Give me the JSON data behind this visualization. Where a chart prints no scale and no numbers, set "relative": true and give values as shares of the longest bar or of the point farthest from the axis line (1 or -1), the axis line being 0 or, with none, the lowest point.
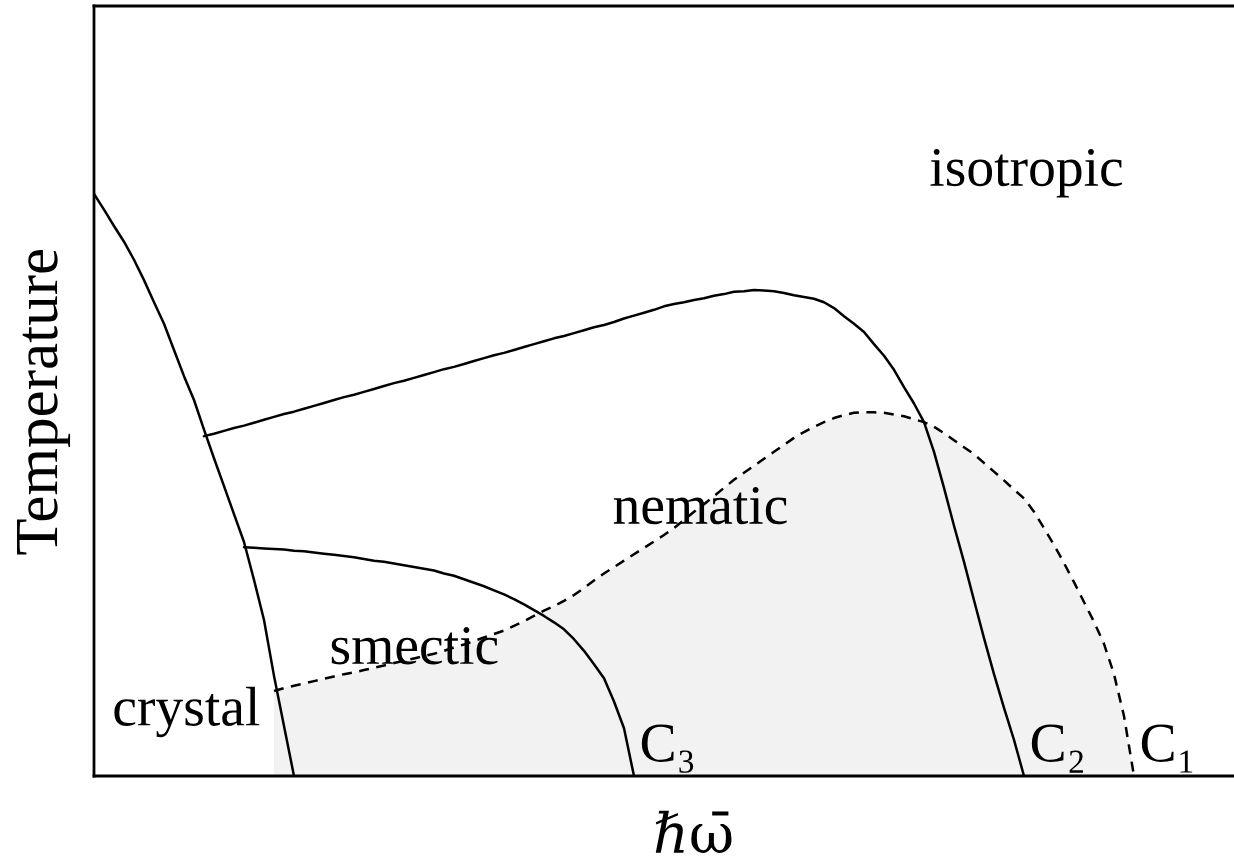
{
  "chart_data": {
    "type": "line",
    "relative": true,
    "tick_labels": false,
    "color": "#000000",
    "xlabel": "ℏω̄",
    "ylabel": "Temperature",
    "categories": [
      null,
      null,
      null,
      null,
      null,
      null,
      null,
      null,
      null,
      null,
      null,
      null,
      null,
      null,
      null,
      null,
      null,
      null,
      null,
      null,
      null,
      null,
      null,
      null,
      null,
      null,
      null,
      null,
      null,
      null,
      null,
      null,
      null,
      null,
      null,
      null,
      null,
      null,
      null,
      null,
      null,
      null,
      null,
      null,
      null,
      null,
      null,
      null,
      null,
      null,
      null,
      null,
      null,
      null,
      null,
      null,
      null,
      null,
      null,
      null,
      null,
      null,
      null,
      null,
      null,
      null,
      null,
      null,
      null,
      null,
      null,
      null,
      null,
      null,
      null,
      null,
      null,
      null,
      null,
      null,
      null,
      null,
      null,
      null,
      null,
      null,
      null,
      null,
      null,
      null,
      null,
      null,
      null,
      null,
      null,
      null,
      null,
      null,
      null,
      null,
      null,
      null,
      null,
      null,
      null,
      null,
      null,
      null,
      null,
      null,
      null,
      null,
      null,
      null,
      null
    ],
    "series": [
      {
        "type": "area",
        "name": "C₁",
        "color": "#f2f2f2",
        "line_style": "dashed",
        "values": [
          null,
          null,
          null,
          null,
          null,
          null,
          null,
          null,
          null,
          null,
          null,
          null,
          null,
          null,
          null,
          null,
          null,
          null,
          0.146,
          0.151,
          0.155,
          0.159,
          0.163,
          0.167,
          0.171,
          0.175,
          0.178,
          0.182,
          0.186,
          0.19,
          0.194,
          0.198,
          0.202,
          0.206,
          0.21,
          0.215,
          0.221,
          0.226,
          0.232,
          0.238,
          0.244,
          0.25,
          0.258,
          0.266,
          0.275,
          0.284,
          0.292,
          0.301,
          0.311,
          0.323,
          0.336,
          0.348,
          0.359,
          0.37,
          0.381,
          0.392,
          0.403,
          0.414,
          0.426,
          0.44,
          0.454,
          0.467,
          0.481,
          0.495,
          0.509,
          0.521,
          0.533,
          0.545,
          0.557,
          0.569,
          0.581,
          0.591,
          0.6,
          0.608,
          0.615,
          0.62,
          0.624,
          0.625,
          0.625,
          0.624,
          0.621,
          0.618,
          0.613,
          0.608,
          0.6,
          0.589,
          0.577,
          0.565,
          0.553,
          0.538,
          0.523,
          0.508,
          0.492,
          0.477,
          0.454,
          0.426,
          0.397,
          0.366,
          0.333,
          0.299,
          0.265,
          0.227,
          0.175,
          0.103,
          0,
          null,
          null,
          null,
          null,
          null,
          null,
          null,
          null,
          null,
          null
        ]
      },
      {
        "type": "line",
        "color": "#000000",
        "line_style": "solid",
        "values": [
          1.0,
          0.973,
          0.945,
          0.918,
          0.887,
          0.852,
          0.814,
          0.777,
          0.732,
          0.687,
          0.646,
          0.595,
          0.546,
          0.498,
          0.45,
          0.402,
          0.337,
          0.268,
          0.172,
          0.086,
          0,
          null,
          null,
          null,
          null,
          null,
          null,
          null,
          null,
          null,
          null,
          null,
          null,
          null,
          null,
          null,
          null,
          null,
          null,
          null,
          null,
          null,
          null,
          null,
          null,
          null,
          null,
          null,
          null,
          null,
          null,
          null,
          null,
          null,
          null,
          null,
          null,
          null,
          null,
          null,
          null,
          null,
          null,
          null,
          null,
          null,
          null,
          null,
          null,
          null,
          null,
          null,
          null,
          null,
          null,
          null,
          null,
          null,
          null,
          null,
          null,
          null,
          null,
          null,
          null,
          null,
          null,
          null,
          null,
          null,
          null,
          null,
          null,
          null,
          null,
          null,
          null,
          null,
          null,
          null,
          null,
          null,
          null,
          null,
          null,
          null,
          null,
          null,
          null,
          null,
          null,
          null,
          null,
          null,
          null
        ]
      },
      {
        "type": "line",
        "name": "C₂",
        "color": "#000000",
        "line_style": "solid",
        "values": [
          null,
          null,
          null,
          null,
          null,
          null,
          null,
          null,
          null,
          null,
          null,
          0.584,
          0.588,
          0.593,
          0.598,
          0.602,
          0.607,
          0.612,
          0.617,
          0.622,
          0.626,
          0.631,
          0.636,
          0.641,
          0.646,
          0.651,
          0.655,
          0.66,
          0.665,
          0.67,
          0.675,
          0.679,
          0.684,
          0.689,
          0.694,
          0.699,
          0.703,
          0.708,
          0.713,
          0.718,
          0.723,
          0.727,
          0.732,
          0.737,
          0.742,
          0.747,
          0.752,
          0.756,
          0.761,
          0.766,
          0.771,
          0.775,
          0.78,
          0.786,
          0.791,
          0.796,
          0.801,
          0.807,
          0.811,
          0.814,
          0.818,
          0.821,
          0.825,
          0.828,
          0.832,
          0.833,
          0.835,
          0.834,
          0.833,
          0.83,
          0.826,
          0.823,
          0.82,
          0.814,
          0.804,
          0.79,
          0.777,
          0.763,
          0.742,
          0.722,
          0.698,
          0.668,
          0.64,
          0.608,
          0.557,
          0.495,
          0.43,
          0.368,
          0.302,
          0.237,
          0.175,
          0.117,
          0.062,
          0,
          null,
          null,
          null,
          null,
          null,
          null,
          null,
          null,
          null,
          null,
          null,
          null,
          null,
          null,
          null,
          null,
          null,
          null,
          null,
          null,
          null
        ]
      },
      {
        "type": "line",
        "name": "C₃",
        "color": "#000000",
        "line_style": "solid",
        "values": [
          null,
          null,
          null,
          null,
          null,
          null,
          null,
          null,
          null,
          null,
          null,
          null,
          null,
          null,
          null,
          0.393,
          0.392,
          0.391,
          0.39,
          0.389,
          0.387,
          0.386,
          0.384,
          0.382,
          0.38,
          0.378,
          0.376,
          0.373,
          0.37,
          0.368,
          0.365,
          0.362,
          0.359,
          0.356,
          0.353,
          0.348,
          0.344,
          0.338,
          0.332,
          0.326,
          0.319,
          0.312,
          0.304,
          0.295,
          0.285,
          0.275,
          0.264,
          0.252,
          0.235,
          0.215,
          0.192,
          0.168,
          0.128,
          0.082,
          0,
          null,
          null,
          null,
          null,
          null,
          null,
          null,
          null,
          null,
          null,
          null,
          null,
          null,
          null,
          null,
          null,
          null,
          null,
          null,
          null,
          null,
          null,
          null,
          null,
          null,
          null,
          null,
          null,
          null,
          null,
          null,
          null,
          null,
          null,
          null,
          null,
          null,
          null,
          null,
          null,
          null,
          null,
          null,
          null,
          null,
          null,
          null,
          null,
          null,
          null,
          null,
          null,
          null,
          null,
          null,
          null,
          null,
          null,
          null,
          null
        ]
      }
    ],
    "annotations": [
      "isotropic",
      "nematic",
      "smectic",
      "crystal"
    ]
  }
}
